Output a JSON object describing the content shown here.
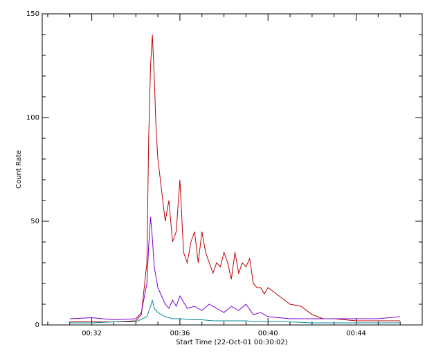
{
  "chart_data": {
    "type": "line",
    "title": "",
    "xlabel": "Start Time (22-Oct-01 00:30:02)",
    "ylabel": "Count Rate",
    "x_unit": "time (HH:MM, 22-Oct-01)",
    "xlim": [
      "00:29:45",
      "00:47:00"
    ],
    "ylim": [
      0,
      150
    ],
    "x_ticks": [
      "00:32",
      "00:36",
      "00:40",
      "00:44"
    ],
    "y_ticks": [
      "0",
      "50",
      "100",
      "150"
    ],
    "grid": false,
    "legend": "none",
    "series": [
      {
        "color": "#bb0000",
        "x": [
          "00:31:00",
          "00:32:00",
          "00:33:00",
          "00:34:00",
          "00:34:15",
          "00:34:30",
          "00:34:35",
          "00:34:40",
          "00:34:45",
          "00:34:50",
          "00:34:55",
          "00:35:00",
          "00:35:10",
          "00:35:20",
          "00:35:30",
          "00:35:40",
          "00:35:50",
          "00:36:00",
          "00:36:10",
          "00:36:20",
          "00:36:30",
          "00:36:40",
          "00:36:50",
          "00:37:00",
          "00:37:10",
          "00:37:20",
          "00:37:30",
          "00:37:40",
          "00:37:50",
          "00:38:00",
          "00:38:10",
          "00:38:20",
          "00:38:30",
          "00:38:40",
          "00:38:50",
          "00:39:00",
          "00:39:10",
          "00:39:20",
          "00:39:30",
          "00:39:40",
          "00:39:50",
          "00:40:00",
          "00:40:30",
          "00:41:00",
          "00:41:30",
          "00:42:00",
          "00:42:30",
          "00:43:00",
          "00:43:30",
          "00:44:00",
          "00:45:00",
          "00:46:00"
        ],
        "y": [
          1.5,
          1.5,
          1.5,
          2,
          5,
          30,
          90,
          125,
          140,
          120,
          95,
          80,
          65,
          50,
          60,
          40,
          45,
          70,
          35,
          30,
          40,
          45,
          30,
          45,
          35,
          30,
          25,
          30,
          28,
          35,
          30,
          22,
          35,
          25,
          30,
          28,
          32,
          20,
          18,
          18,
          15,
          18,
          14,
          10,
          9,
          5,
          3,
          3,
          2.5,
          2,
          2,
          2
        ]
      },
      {
        "color": "#7700cc",
        "x": [
          "00:31:00",
          "00:32:00",
          "00:33:00",
          "00:34:00",
          "00:34:15",
          "00:34:30",
          "00:34:35",
          "00:34:40",
          "00:34:45",
          "00:34:50",
          "00:35:00",
          "00:35:10",
          "00:35:20",
          "00:35:30",
          "00:35:40",
          "00:35:50",
          "00:36:00",
          "00:36:20",
          "00:36:40",
          "00:37:00",
          "00:37:20",
          "00:37:40",
          "00:38:00",
          "00:38:20",
          "00:38:40",
          "00:39:00",
          "00:39:20",
          "00:39:40",
          "00:40:00",
          "00:41:00",
          "00:42:00",
          "00:43:00",
          "00:44:00",
          "00:45:00",
          "00:46:00"
        ],
        "y": [
          3,
          3.5,
          2.5,
          3,
          6,
          20,
          38,
          52,
          42,
          28,
          18,
          14,
          10,
          8,
          12,
          9,
          14,
          8,
          9,
          7,
          10,
          8,
          6,
          9,
          7,
          10,
          5,
          6,
          4,
          3,
          3,
          3,
          3,
          3,
          4
        ]
      },
      {
        "color": "#008899",
        "x": [
          "00:31:00",
          "00:32:00",
          "00:33:00",
          "00:34:00",
          "00:34:30",
          "00:34:40",
          "00:34:45",
          "00:34:50",
          "00:35:00",
          "00:35:20",
          "00:35:40",
          "00:36:00",
          "00:36:30",
          "00:37:00",
          "00:37:30",
          "00:38:00",
          "00:38:30",
          "00:39:00",
          "00:39:30",
          "00:40:00",
          "00:41:00",
          "00:42:00",
          "00:43:00",
          "00:44:00",
          "00:45:00",
          "00:46:00"
        ],
        "y": [
          1,
          1,
          1.5,
          1.5,
          4,
          9,
          12,
          8,
          6,
          4,
          3,
          3,
          2.5,
          2.5,
          2,
          2,
          2,
          2,
          1.5,
          1.5,
          1.5,
          1,
          1,
          1,
          1,
          1
        ]
      }
    ]
  }
}
